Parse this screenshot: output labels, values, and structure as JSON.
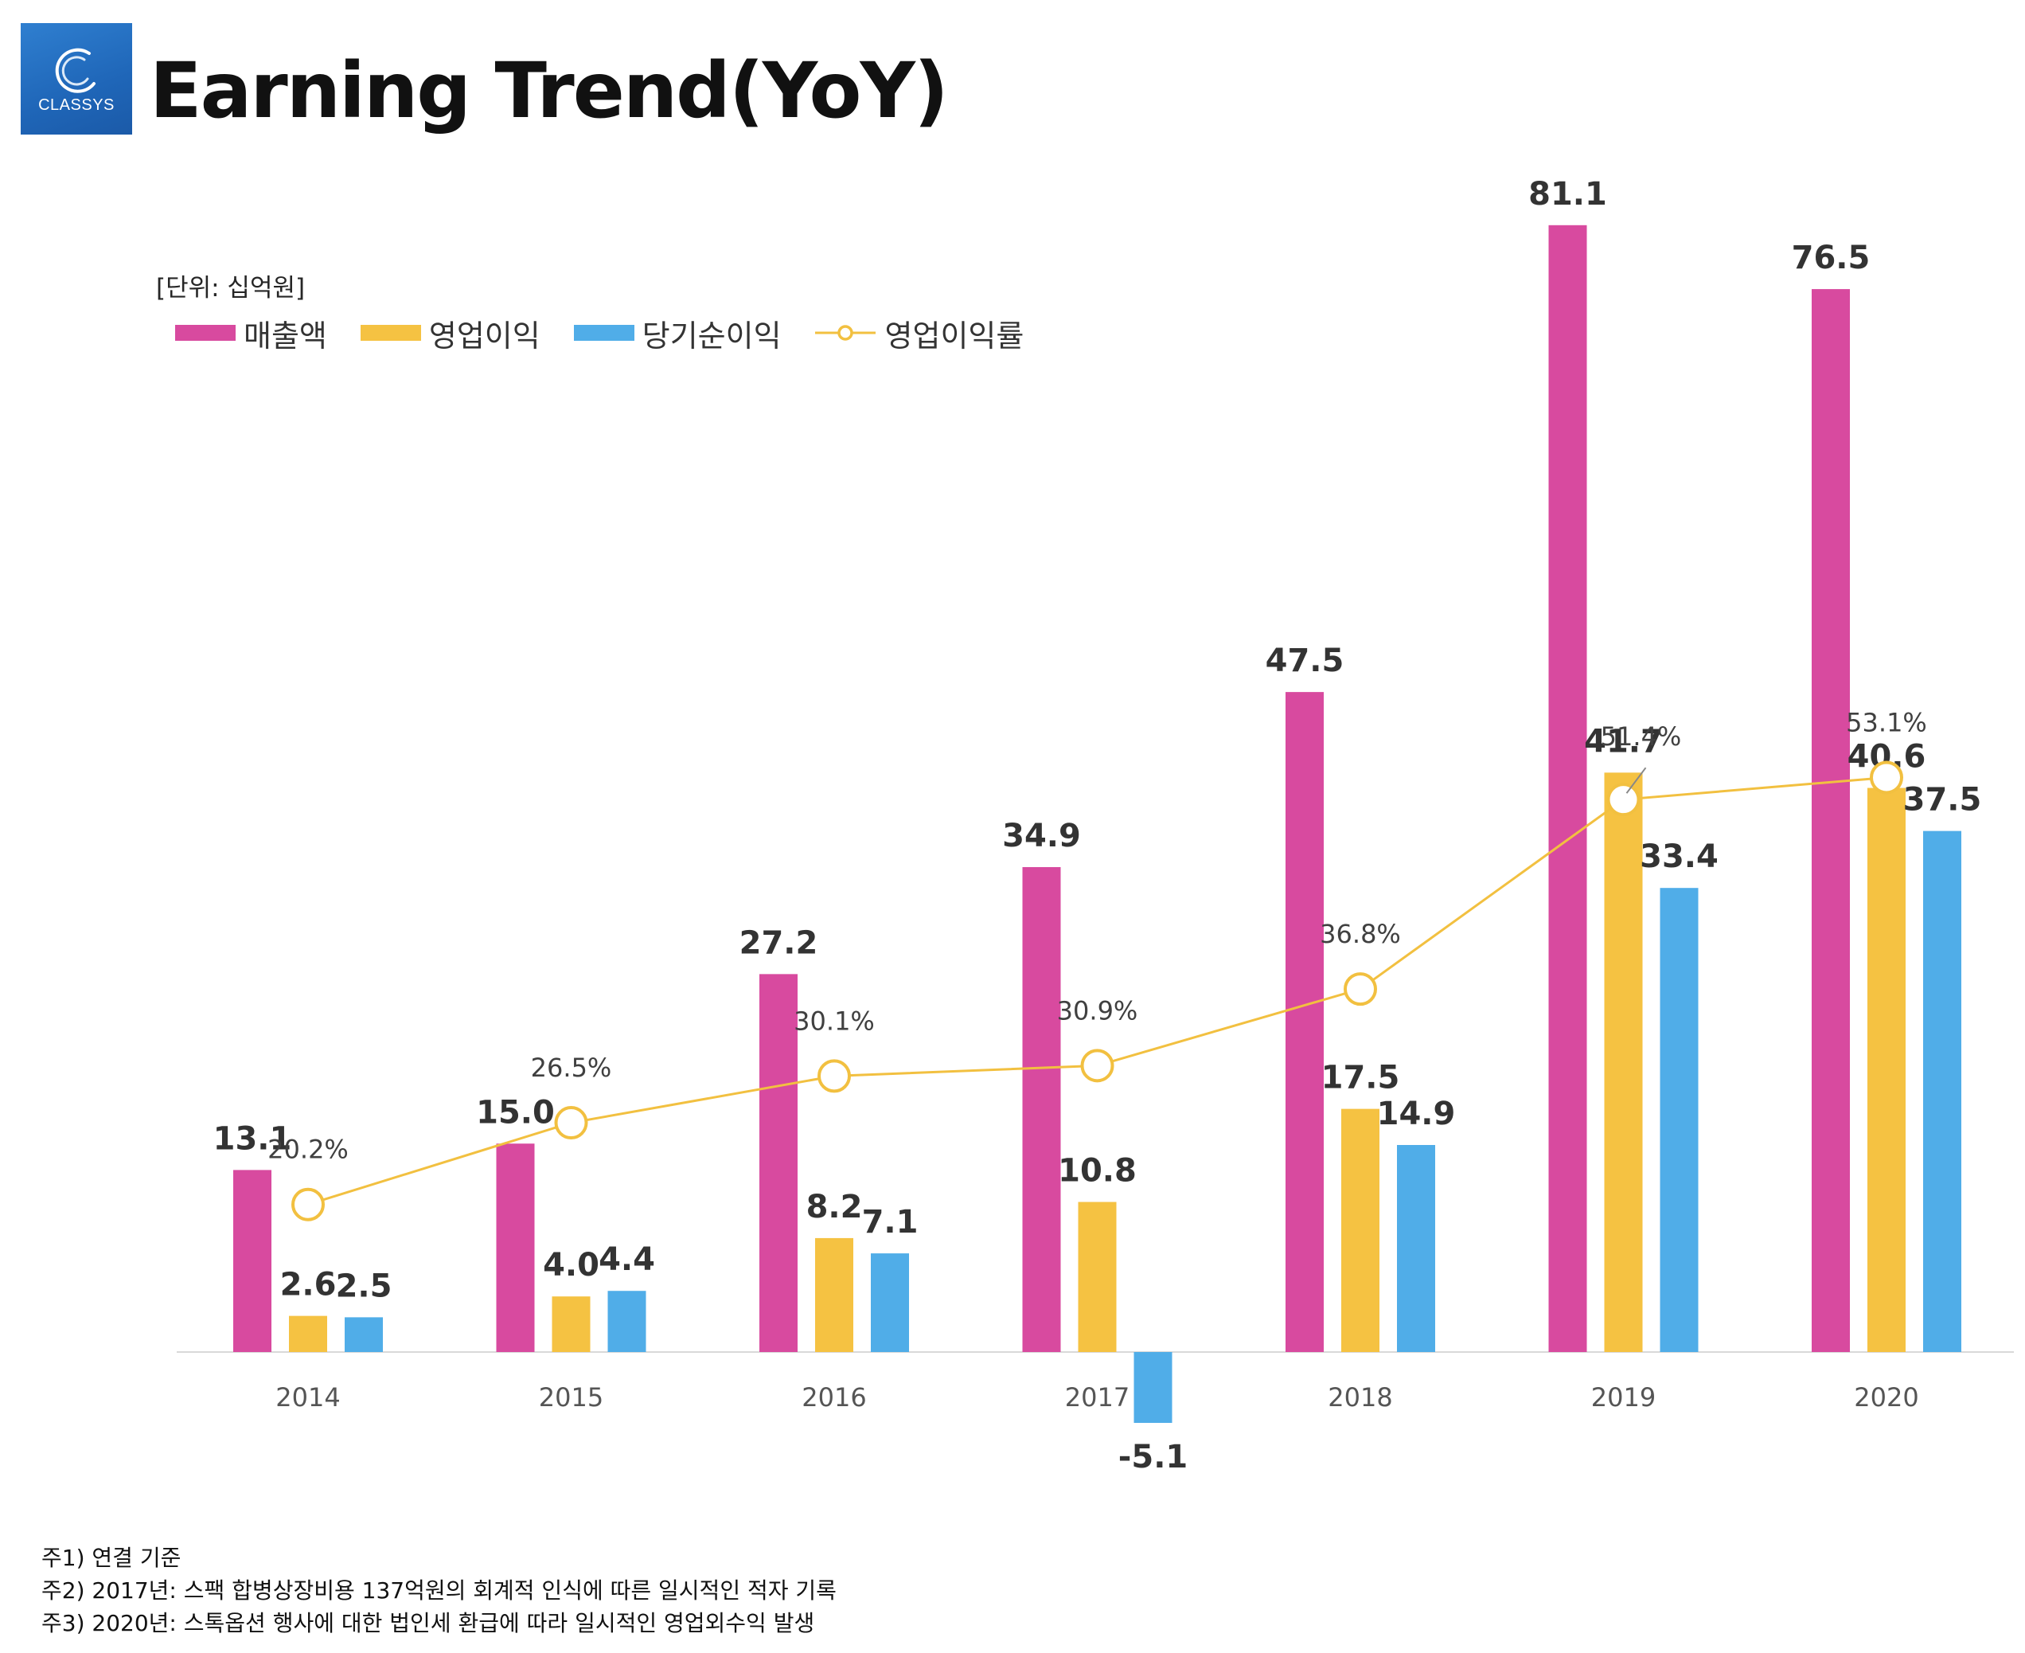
{
  "header": {
    "logo_text": "CLASSYS",
    "title": "Earning Trend(YoY)"
  },
  "unit_label": "[단위: 십억원]",
  "chart_data": {
    "type": "bar",
    "categories": [
      "2014",
      "2015",
      "2016",
      "2017",
      "2018",
      "2019",
      "2020"
    ],
    "series": [
      {
        "name": "매출액",
        "type": "bar",
        "color": "#d84a9f",
        "values": [
          13.1,
          15.0,
          27.2,
          34.9,
          47.5,
          81.1,
          76.5
        ],
        "labels": [
          "13.1",
          "15.0",
          "27.2",
          "34.9",
          "47.5",
          "81.1",
          "76.5"
        ]
      },
      {
        "name": "영업이익",
        "type": "bar",
        "color": "#f5c242",
        "values": [
          2.6,
          4.0,
          8.2,
          10.8,
          17.5,
          41.7,
          40.6
        ],
        "labels": [
          "2.6",
          "4.0",
          "8.2",
          "10.8",
          "17.5",
          "41.7",
          "40.6"
        ]
      },
      {
        "name": "당기순이익",
        "type": "bar",
        "color": "#50ade8",
        "values": [
          2.5,
          4.4,
          7.1,
          -5.1,
          14.9,
          33.4,
          37.5
        ],
        "labels": [
          "2.5",
          "4.4",
          "7.1",
          "-5.1",
          "14.9",
          "33.4",
          "37.5"
        ]
      },
      {
        "name": "영업이익률",
        "type": "line",
        "color": "#f2c040",
        "values": [
          20.2,
          26.5,
          30.1,
          30.9,
          36.8,
          51.4,
          53.1
        ],
        "labels": [
          "20.2%",
          "26.5%",
          "30.1%",
          "30.9%",
          "36.8%",
          "51.4%",
          "53.1%"
        ]
      }
    ],
    "legend_position": "top-left",
    "grid": false
  },
  "notes": [
    "주1) 연결 기준",
    "주2) 2017년: 스팩 합병상장비용 137억원의 회계적 인식에 따른 일시적인 적자 기록",
    "주3) 2020년: 스톡옵션 행사에 대한 법인세 환급에 따라 일시적인 영업외수익 발생"
  ]
}
